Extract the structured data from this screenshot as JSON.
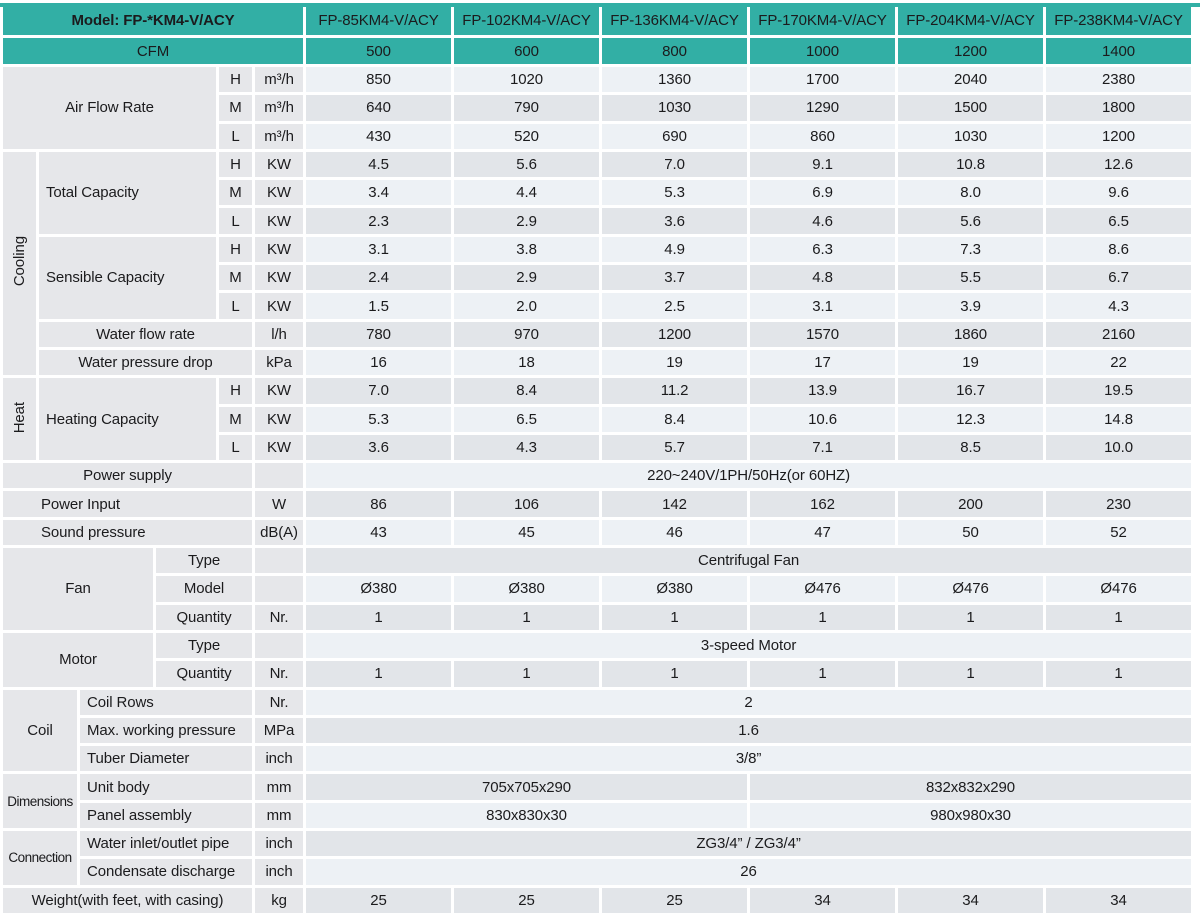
{
  "colors": {
    "teal": "#32afa5",
    "row_light": "#edf1f5",
    "row_gray": "#e2e5e9",
    "label_bg": "#e6e7ea",
    "grid": "#ffffff",
    "text": "#1b1b1d"
  },
  "table": {
    "rows": [
      {
        "kind": "h1",
        "cells": [
          {
            "k": "thm",
            "t": "Model: FP-*KM4-V/ACY",
            "cs": 6
          },
          {
            "k": "thcol",
            "t": "FP-85KM4-V/ACY"
          },
          {
            "k": "thcol",
            "t": "FP-102KM4-V/ACY"
          },
          {
            "k": "thcol",
            "t": "FP-136KM4-V/ACY"
          },
          {
            "k": "thcol",
            "t": "FP-170KM4-V/ACY"
          },
          {
            "k": "thcol",
            "t": "FP-204KM4-V/ACY"
          },
          {
            "k": "thcol",
            "t": "FP-238KM4-V/ACY"
          }
        ]
      },
      {
        "kind": "h2",
        "cells": [
          {
            "k": "thc",
            "t": "CFM",
            "cs": 6
          },
          {
            "k": "thcfm",
            "t": "500"
          },
          {
            "k": "thcfm",
            "t": "600"
          },
          {
            "k": "thcfm",
            "t": "800"
          },
          {
            "k": "thcfm",
            "t": "1000"
          },
          {
            "k": "thcfm",
            "t": "1200"
          },
          {
            "k": "thcfm",
            "t": "1400"
          }
        ]
      },
      {
        "s": "sl",
        "cells": [
          {
            "k": "lab",
            "t": "Air Flow Rate",
            "cs": 4,
            "rs": 3
          },
          {
            "k": "sub",
            "t": "H"
          },
          {
            "k": "unit",
            "t": "m³/h"
          },
          {
            "k": "v",
            "vals": [
              "850",
              "1020",
              "1360",
              "1700",
              "2040",
              "2380"
            ]
          }
        ]
      },
      {
        "s": "sg",
        "cells": [
          {
            "k": "sub",
            "t": "M"
          },
          {
            "k": "unit",
            "t": "m³/h"
          },
          {
            "k": "v",
            "vals": [
              "640",
              "790",
              "1030",
              "1290",
              "1500",
              "1800"
            ]
          }
        ]
      },
      {
        "s": "sl",
        "cells": [
          {
            "k": "sub",
            "t": "L"
          },
          {
            "k": "unit",
            "t": "m³/h"
          },
          {
            "k": "v",
            "vals": [
              "430",
              "520",
              "690",
              "860",
              "1030",
              "1200"
            ]
          }
        ]
      },
      {
        "s": "sg",
        "cells": [
          {
            "k": "gv",
            "t": "Cooling",
            "rs": 8
          },
          {
            "k": "labl",
            "t": "Total Capacity",
            "cs": 3,
            "rs": 3
          },
          {
            "k": "sub",
            "t": "H"
          },
          {
            "k": "unit",
            "t": "KW"
          },
          {
            "k": "v",
            "vals": [
              "4.5",
              "5.6",
              "7.0",
              "9.1",
              "10.8",
              "12.6"
            ]
          }
        ]
      },
      {
        "s": "sl",
        "cells": [
          {
            "k": "sub",
            "t": "M"
          },
          {
            "k": "unit",
            "t": "KW"
          },
          {
            "k": "v",
            "vals": [
              "3.4",
              "4.4",
              "5.3",
              "6.9",
              "8.0",
              "9.6"
            ]
          }
        ]
      },
      {
        "s": "sg",
        "cells": [
          {
            "k": "sub",
            "t": "L"
          },
          {
            "k": "unit",
            "t": "KW"
          },
          {
            "k": "v",
            "vals": [
              "2.3",
              "2.9",
              "3.6",
              "4.6",
              "5.6",
              "6.5"
            ]
          }
        ]
      },
      {
        "s": "sl",
        "cells": [
          {
            "k": "labl",
            "t": "Sensible Capacity",
            "cs": 3,
            "rs": 3
          },
          {
            "k": "sub",
            "t": "H"
          },
          {
            "k": "unit",
            "t": "KW"
          },
          {
            "k": "v",
            "vals": [
              "3.1",
              "3.8",
              "4.9",
              "6.3",
              "7.3",
              "8.6"
            ]
          }
        ]
      },
      {
        "s": "sg",
        "cells": [
          {
            "k": "sub",
            "t": "M"
          },
          {
            "k": "unit",
            "t": "KW"
          },
          {
            "k": "v",
            "vals": [
              "2.4",
              "2.9",
              "3.7",
              "4.8",
              "5.5",
              "6.7"
            ]
          }
        ]
      },
      {
        "s": "sl",
        "cells": [
          {
            "k": "sub",
            "t": "L"
          },
          {
            "k": "unit",
            "t": "KW"
          },
          {
            "k": "v",
            "vals": [
              "1.5",
              "2.0",
              "2.5",
              "3.1",
              "3.9",
              "4.3"
            ]
          }
        ]
      },
      {
        "s": "sg",
        "cells": [
          {
            "k": "lab",
            "t": "Water flow rate",
            "cs": 4
          },
          {
            "k": "unit",
            "t": "l/h"
          },
          {
            "k": "v",
            "vals": [
              "780",
              "970",
              "1200",
              "1570",
              "1860",
              "2160"
            ]
          }
        ]
      },
      {
        "s": "sl",
        "cells": [
          {
            "k": "lab",
            "t": "Water pressure drop",
            "cs": 4
          },
          {
            "k": "unit",
            "t": "kPa"
          },
          {
            "k": "v",
            "vals": [
              "16",
              "18",
              "19",
              "17",
              "19",
              "22"
            ]
          }
        ]
      },
      {
        "s": "sg",
        "cells": [
          {
            "k": "gv",
            "t": "Heat",
            "rs": 3
          },
          {
            "k": "labl",
            "t": "Heating Capacity",
            "cs": 3,
            "rs": 3
          },
          {
            "k": "sub",
            "t": "H"
          },
          {
            "k": "unit",
            "t": "KW"
          },
          {
            "k": "v",
            "vals": [
              "7.0",
              "8.4",
              "11.2",
              "13.9",
              "16.7",
              "19.5"
            ]
          }
        ]
      },
      {
        "s": "sl",
        "cells": [
          {
            "k": "sub",
            "t": "M"
          },
          {
            "k": "unit",
            "t": "KW"
          },
          {
            "k": "v",
            "vals": [
              "5.3",
              "6.5",
              "8.4",
              "10.6",
              "12.3",
              "14.8"
            ]
          }
        ]
      },
      {
        "s": "sg",
        "cells": [
          {
            "k": "sub",
            "t": "L"
          },
          {
            "k": "unit",
            "t": "KW"
          },
          {
            "k": "v",
            "vals": [
              "3.6",
              "4.3",
              "5.7",
              "7.1",
              "8.5",
              "10.0"
            ]
          }
        ]
      },
      {
        "s": "sl",
        "cells": [
          {
            "k": "lab",
            "t": "Power supply",
            "cs": 5
          },
          {
            "k": "unit",
            "t": ""
          },
          {
            "k": "vspan",
            "t": "220~240V/1PH/50Hz(or 60HZ)",
            "cs": 6
          }
        ]
      },
      {
        "s": "sg",
        "cells": [
          {
            "k": "labi",
            "t": "Power Input",
            "cs": 5
          },
          {
            "k": "unit",
            "t": "W"
          },
          {
            "k": "v",
            "vals": [
              "86",
              "106",
              "142",
              "162",
              "200",
              "230"
            ]
          }
        ]
      },
      {
        "s": "sl",
        "cells": [
          {
            "k": "labi",
            "t": "Sound pressure",
            "cs": 5
          },
          {
            "k": "unit",
            "t": "dB(A)"
          },
          {
            "k": "v",
            "vals": [
              "43",
              "45",
              "46",
              "47",
              "50",
              "52"
            ]
          }
        ]
      },
      {
        "s": "sg",
        "cells": [
          {
            "k": "g",
            "t": "Fan",
            "cs": 3,
            "rs": 3
          },
          {
            "k": "sub",
            "t": "Type",
            "cs": 2
          },
          {
            "k": "unit",
            "t": ""
          },
          {
            "k": "vspan",
            "t": "Centrifugal Fan",
            "cs": 6
          }
        ]
      },
      {
        "s": "sl",
        "cells": [
          {
            "k": "sub",
            "t": "Model",
            "cs": 2
          },
          {
            "k": "unit",
            "t": ""
          },
          {
            "k": "v",
            "vals": [
              "Ø380",
              "Ø380",
              "Ø380",
              "Ø476",
              "Ø476",
              "Ø476"
            ]
          }
        ]
      },
      {
        "s": "sg",
        "cells": [
          {
            "k": "sub",
            "t": "Quantity",
            "cs": 2
          },
          {
            "k": "unit",
            "t": "Nr."
          },
          {
            "k": "v",
            "vals": [
              "1",
              "1",
              "1",
              "1",
              "1",
              "1"
            ]
          }
        ]
      },
      {
        "s": "sl",
        "cells": [
          {
            "k": "g",
            "t": "Motor",
            "cs": 3,
            "rs": 2
          },
          {
            "k": "sub",
            "t": "Type",
            "cs": 2
          },
          {
            "k": "unit",
            "t": ""
          },
          {
            "k": "vspan",
            "t": "3-speed Motor",
            "cs": 6
          }
        ]
      },
      {
        "s": "sg",
        "cells": [
          {
            "k": "sub",
            "t": "Quantity",
            "cs": 2
          },
          {
            "k": "unit",
            "t": "Nr."
          },
          {
            "k": "v",
            "vals": [
              "1",
              "1",
              "1",
              "1",
              "1",
              "1"
            ]
          }
        ]
      },
      {
        "s": "sl",
        "cells": [
          {
            "k": "g",
            "t": "Coil",
            "cs": 2,
            "rs": 3
          },
          {
            "k": "labl",
            "t": "Coil Rows",
            "cs": 3
          },
          {
            "k": "unit",
            "t": "Nr."
          },
          {
            "k": "vspan",
            "t": "2",
            "cs": 6
          }
        ]
      },
      {
        "s": "sg",
        "cells": [
          {
            "k": "labl",
            "t": "Max. working pressure",
            "cs": 3
          },
          {
            "k": "unit",
            "t": "MPa"
          },
          {
            "k": "vspan",
            "t": "1.6",
            "cs": 6
          }
        ]
      },
      {
        "s": "sl",
        "cells": [
          {
            "k": "labl",
            "t": "Tuber Diameter",
            "cs": 3
          },
          {
            "k": "unit",
            "t": "inch"
          },
          {
            "k": "vspan",
            "t": "3/8”",
            "cs": 6
          }
        ]
      },
      {
        "s": "sg",
        "cells": [
          {
            "k": "gc",
            "t": "Dimensions",
            "cs": 2,
            "rs": 2
          },
          {
            "k": "labl",
            "t": "Unit body",
            "cs": 3
          },
          {
            "k": "unit",
            "t": "mm"
          },
          {
            "k": "vspan",
            "t": "705x705x290",
            "cs": 3
          },
          {
            "k": "vspan",
            "t": "832x832x290",
            "cs": 3
          }
        ]
      },
      {
        "s": "sl",
        "cells": [
          {
            "k": "labl",
            "t": "Panel assembly",
            "cs": 3
          },
          {
            "k": "unit",
            "t": "mm"
          },
          {
            "k": "vspan",
            "t": "830x830x30",
            "cs": 3
          },
          {
            "k": "vspan",
            "t": "980x980x30",
            "cs": 3
          }
        ]
      },
      {
        "s": "sg",
        "cells": [
          {
            "k": "gc",
            "t": "Connection",
            "cs": 2,
            "rs": 2
          },
          {
            "k": "labl",
            "t": "Water inlet/outlet pipe",
            "cs": 3
          },
          {
            "k": "unit",
            "t": "inch"
          },
          {
            "k": "vspan",
            "t": "ZG3/4” / ZG3/4”",
            "cs": 6
          }
        ]
      },
      {
        "s": "sl",
        "cells": [
          {
            "k": "labl",
            "t": "Condensate discharge",
            "cs": 3
          },
          {
            "k": "unit",
            "t": "inch"
          },
          {
            "k": "vspan",
            "t": "26",
            "cs": 6
          }
        ]
      },
      {
        "s": "sg",
        "cells": [
          {
            "k": "lab",
            "t": "Weight(with feet, with casing)",
            "cs": 5
          },
          {
            "k": "unit",
            "t": "kg"
          },
          {
            "k": "v",
            "vals": [
              "25",
              "25",
              "25",
              "34",
              "34",
              "34"
            ]
          }
        ]
      }
    ]
  }
}
